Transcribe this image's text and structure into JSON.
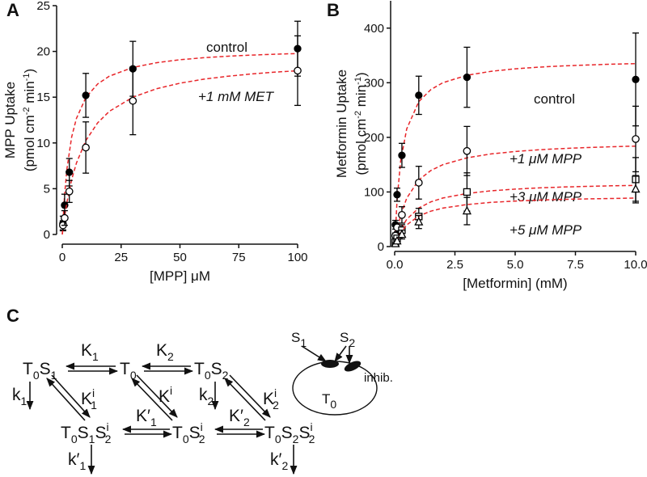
{
  "chart_data": [
    {
      "type": "scatter",
      "panel": "A",
      "xlabel": "[MPP] μM",
      "ylabel": "MPP Uptake",
      "ylabel_units": [
        "(pmol cm",
        "-2",
        " min",
        "-1",
        ")"
      ],
      "xlim": [
        0,
        100
      ],
      "xticks": [
        0,
        25,
        50,
        75,
        100
      ],
      "ylim": [
        0,
        25
      ],
      "yticks": [
        0,
        5,
        10,
        15,
        20,
        25
      ],
      "fit_color": "#e8262a",
      "fit_x": [
        0,
        1,
        2,
        4,
        6,
        10,
        15,
        20,
        30,
        40,
        50,
        60,
        70,
        80,
        90,
        100
      ],
      "series": [
        {
          "name": "control",
          "marker": "filled-circle",
          "color": "#000000",
          "x": [
            0.3,
            1,
            3,
            10,
            30,
            100
          ],
          "values": [
            1.2,
            3.2,
            6.8,
            15.2,
            18.1,
            20.3
          ],
          "errors": [
            0.8,
            1.2,
            1.5,
            2.4,
            3,
            3
          ],
          "fit": [
            0,
            4.36,
            7.19,
            10.65,
            12.68,
            14.96,
            16.44,
            17.3,
            18.25,
            18.76,
            19.09,
            19.31,
            19.47,
            19.59,
            19.69,
            19.77
          ]
        },
        {
          "name": "+1 mM MET",
          "marker": "open-circle",
          "color": "#000000",
          "x": [
            0.3,
            1,
            3,
            10,
            30,
            100
          ],
          "values": [
            1.0,
            1.8,
            4.7,
            9.5,
            14.6,
            17.9
          ],
          "errors": [
            0.5,
            0.8,
            1.2,
            2.8,
            3.7,
            3.8
          ],
          "fit": [
            0,
            1.95,
            3.55,
            6.0,
            7.8,
            10.26,
            12.19,
            13.45,
            15.0,
            15.92,
            16.53,
            16.96,
            17.28,
            17.53,
            17.73,
            17.89
          ]
        }
      ]
    },
    {
      "type": "scatter",
      "panel": "B",
      "xlabel": "[Metformin] (mM)",
      "ylabel": "Metformin Uptake",
      "ylabel_units": [
        "(pmol cm",
        "-2",
        " min",
        "-1",
        ")"
      ],
      "xlim": [
        0,
        10
      ],
      "xticks": [
        {
          "value": 0,
          "label": "0.0"
        },
        {
          "value": 2.5,
          "label": "2.5"
        },
        {
          "value": 5,
          "label": "5.0"
        },
        {
          "value": 7.5,
          "label": "7.5"
        },
        {
          "value": 10,
          "label": "10.0"
        }
      ],
      "ylim": [
        0,
        450
      ],
      "yticks": [
        0,
        100,
        200,
        300,
        400
      ],
      "fit_color": "#e8262a",
      "fit_x": [
        0,
        0.1,
        0.25,
        0.5,
        1,
        1.5,
        2,
        3,
        4,
        5,
        6,
        7,
        8,
        9,
        10
      ],
      "series": [
        {
          "name": "control",
          "marker": "filled-circle",
          "color": "#000000",
          "x": [
            0.03,
            0.1,
            0.3,
            1,
            3,
            10
          ],
          "values": [
            40,
            95,
            167,
            277,
            310,
            306
          ],
          "errors": [
            8,
            12,
            22,
            35,
            55,
            85
          ],
          "fit": [
            0,
            86.3,
            156.8,
            215.6,
            265.4,
            287.5,
            300,
            313.6,
            320.9,
            325.5,
            328.6,
            330.8,
            332.5,
            333.9,
            335.0
          ]
        },
        {
          "name": "+1 μM MPP",
          "marker": "open-circle",
          "color": "#000000",
          "x": [
            0.03,
            0.1,
            0.3,
            1,
            3,
            10
          ],
          "values": [
            20,
            35,
            58,
            117,
            175,
            197
          ],
          "errors": [
            5,
            8,
            15,
            30,
            45,
            60
          ],
          "fit": [
            0,
            27.9,
            57.4,
            88.6,
            121.9,
            139.3,
            150,
            162.5,
            169.6,
            174.1,
            177.3,
            179.6,
            181.4,
            182.8,
            184.0
          ]
        },
        {
          "name": "+3 μM MPP",
          "marker": "open-square",
          "color": "#000000",
          "x": [
            0.03,
            0.1,
            0.3,
            1,
            3,
            10
          ],
          "values": [
            8,
            15,
            30,
            55,
            100,
            123
          ],
          "errors": [
            3,
            5,
            10,
            15,
            35,
            40
          ],
          "fit": [
            0,
            15,
            31.6,
            50,
            70.6,
            81.8,
            88.9,
            97.3,
            102.1,
            105.3,
            107.5,
            109.1,
            110.3,
            111.3,
            112.1
          ]
        },
        {
          "name": "+5 μM MPP",
          "marker": "open-triangle",
          "color": "#000000",
          "x": [
            0.03,
            0.1,
            0.3,
            1,
            3,
            10
          ],
          "values": [
            5,
            10,
            22,
            45,
            65,
            105
          ],
          "errors": [
            2,
            4,
            8,
            12,
            25,
            25
          ],
          "fit": [
            0,
            11.9,
            25,
            39.6,
            55.9,
            64.8,
            70.4,
            77.0,
            80.9,
            83.3,
            85.1,
            86.4,
            87.4,
            88.1,
            88.8
          ]
        }
      ]
    }
  ],
  "diagram": {
    "label": "C",
    "nodes": [
      {
        "parts": [
          [
            "T"
          ],
          [
            "0",
            "sub"
          ],
          [
            "S"
          ],
          [
            "1",
            "sub"
          ]
        ]
      },
      {
        "parts": [
          [
            "T"
          ],
          [
            "0",
            "sub"
          ]
        ]
      },
      {
        "parts": [
          [
            "T"
          ],
          [
            "0",
            "sub"
          ],
          [
            "S"
          ],
          [
            "2",
            "sub"
          ]
        ]
      },
      {
        "parts": [
          [
            "T"
          ],
          [
            "0",
            "sub"
          ],
          [
            "S"
          ],
          [
            "1",
            "sub"
          ],
          [
            "S"
          ],
          [
            "i",
            "sup"
          ],
          [
            "2",
            "sub"
          ]
        ]
      },
      {
        "parts": [
          [
            "T"
          ],
          [
            "0",
            "sub"
          ],
          [
            "S"
          ],
          [
            "i",
            "sup"
          ],
          [
            "2",
            "sub"
          ]
        ]
      },
      {
        "parts": [
          [
            "T"
          ],
          [
            "0",
            "sub"
          ],
          [
            "S"
          ],
          [
            "2",
            "sub"
          ],
          [
            "S"
          ],
          [
            "i",
            "sup"
          ],
          [
            "2",
            "sub"
          ]
        ]
      }
    ],
    "constants": [
      {
        "parts": [
          [
            "K"
          ],
          [
            "1",
            "sub"
          ]
        ]
      },
      {
        "parts": [
          [
            "K"
          ],
          [
            "2",
            "sub"
          ]
        ]
      },
      {
        "parts": [
          [
            "k"
          ],
          [
            "1",
            "sub"
          ]
        ]
      },
      {
        "parts": [
          [
            "K"
          ],
          [
            "i",
            "sup"
          ],
          [
            "1",
            "sub"
          ]
        ]
      },
      {
        "parts": [
          [
            "K"
          ],
          [
            "i",
            "sup"
          ]
        ]
      },
      {
        "parts": [
          [
            "k"
          ],
          [
            "2",
            "sub"
          ]
        ]
      },
      {
        "parts": [
          [
            "K"
          ],
          [
            "i",
            "sup"
          ],
          [
            "2",
            "sub"
          ]
        ]
      },
      {
        "parts": [
          [
            "K′"
          ],
          [
            "1",
            "sub"
          ]
        ]
      },
      {
        "parts": [
          [
            "K′"
          ],
          [
            "2",
            "sub"
          ]
        ]
      },
      {
        "parts": [
          [
            "k′"
          ],
          [
            "1",
            "sub"
          ]
        ]
      },
      {
        "parts": [
          [
            "k′"
          ],
          [
            "2",
            "sub"
          ]
        ]
      }
    ],
    "inset": [
      {
        "parts": [
          [
            "S"
          ],
          [
            "1",
            "sub"
          ]
        ]
      },
      {
        "parts": [
          [
            "S"
          ],
          [
            "2",
            "sub"
          ]
        ]
      },
      {
        "parts": [
          [
            "inhib."
          ]
        ]
      },
      {
        "parts": [
          [
            "T"
          ],
          [
            "0",
            "sub"
          ]
        ]
      }
    ]
  }
}
